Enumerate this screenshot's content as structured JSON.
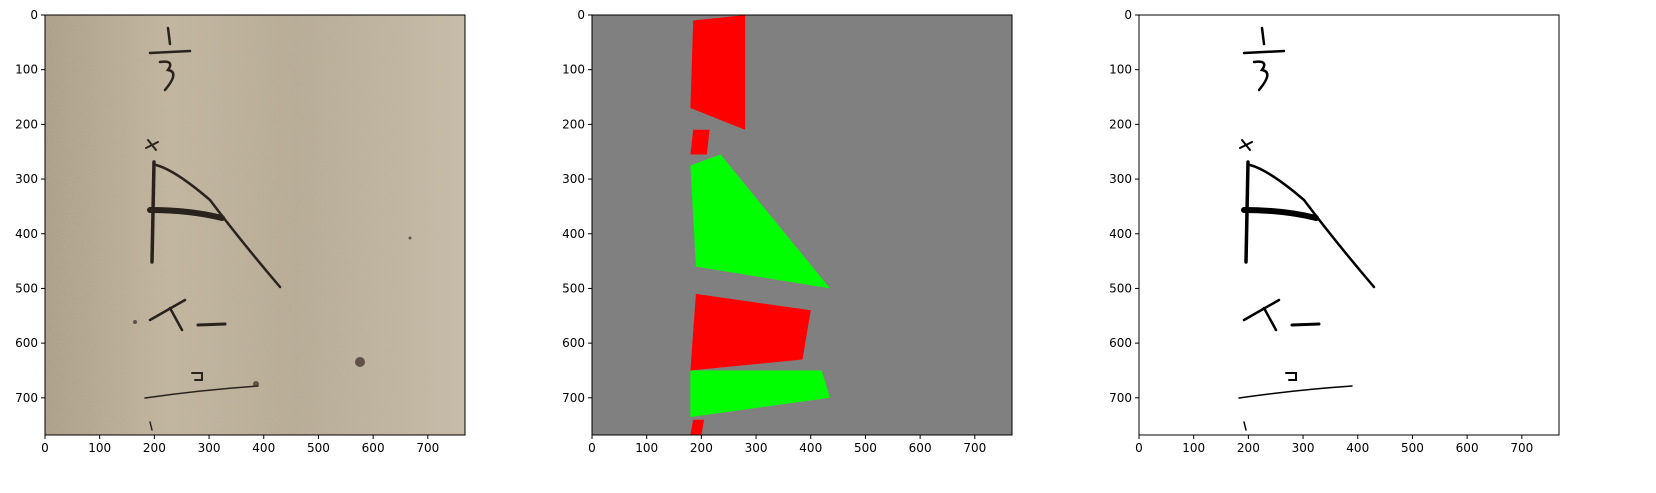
{
  "figure": {
    "panels": [
      {
        "name": "original-scan",
        "kind": "photo",
        "background": "#b8ad96",
        "ink": "#2a221c",
        "x_ticks": [
          "0",
          "100",
          "200",
          "300",
          "400",
          "500",
          "600",
          "700"
        ],
        "y_ticks": [
          "0",
          "100",
          "200",
          "300",
          "400",
          "500",
          "600",
          "700"
        ]
      },
      {
        "name": "region-mask",
        "kind": "mask",
        "background": "#808080",
        "colors": {
          "red": "#ff0000",
          "green": "#00ff00"
        },
        "x_ticks": [
          "0",
          "100",
          "200",
          "300",
          "400",
          "500",
          "600",
          "700"
        ],
        "y_ticks": [
          "0",
          "100",
          "200",
          "300",
          "400",
          "500",
          "600",
          "700"
        ]
      },
      {
        "name": "binarized",
        "kind": "binary",
        "background": "#ffffff",
        "ink": "#000000",
        "x_ticks": [
          "0",
          "100",
          "200",
          "300",
          "400",
          "500",
          "600",
          "700"
        ],
        "y_ticks": [
          "0",
          "100",
          "200",
          "300",
          "400",
          "500",
          "600",
          "700"
        ]
      }
    ]
  },
  "chart_data": {
    "type": "image",
    "xlim": [
      0,
      768
    ],
    "ylim": [
      768,
      0
    ],
    "mask_regions": [
      {
        "color": "red",
        "points": [
          [
            185,
            10
          ],
          [
            280,
            0
          ],
          [
            280,
            210
          ],
          [
            180,
            170
          ]
        ]
      },
      {
        "color": "red",
        "points": [
          [
            185,
            210
          ],
          [
            215,
            210
          ],
          [
            210,
            255
          ],
          [
            180,
            255
          ]
        ]
      },
      {
        "color": "green",
        "points": [
          [
            180,
            275
          ],
          [
            235,
            255
          ],
          [
            435,
            500
          ],
          [
            190,
            460
          ]
        ]
      },
      {
        "color": "red",
        "points": [
          [
            190,
            510
          ],
          [
            400,
            540
          ],
          [
            385,
            630
          ],
          [
            180,
            650
          ]
        ]
      },
      {
        "color": "green",
        "points": [
          [
            180,
            650
          ],
          [
            420,
            650
          ],
          [
            435,
            700
          ],
          [
            180,
            735
          ]
        ]
      },
      {
        "color": "red",
        "points": [
          [
            185,
            740
          ],
          [
            205,
            740
          ],
          [
            200,
            768
          ],
          [
            180,
            768
          ]
        ]
      }
    ]
  }
}
